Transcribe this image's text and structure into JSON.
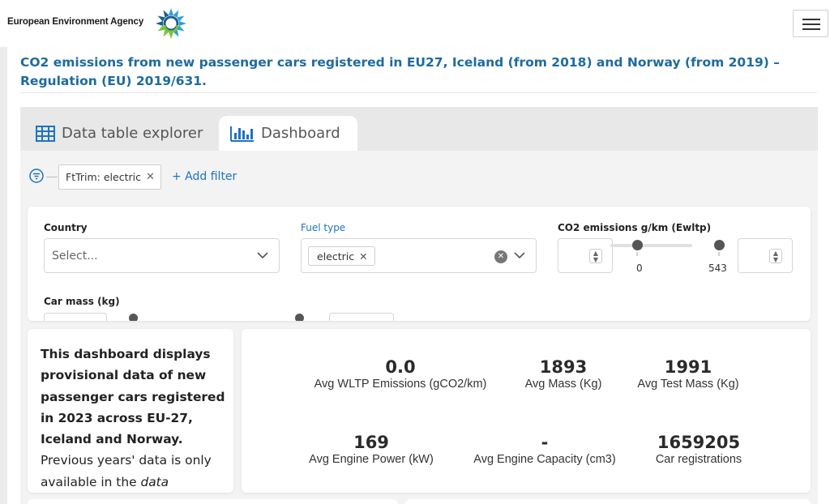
{
  "header": {
    "brand": "European Environment Agency",
    "logo_icon": "eea-logo-icon",
    "menu_icon": "hamburger-menu-icon"
  },
  "page": {
    "title": "CO2 emissions from new passenger cars registered in EU27, Iceland (from 2018) and Norway (from 2019) – Regulation (EU) 2019/631."
  },
  "tabs": [
    {
      "label": "Data table explorer",
      "icon": "table-grid-icon",
      "active": false
    },
    {
      "label": "Dashboard",
      "icon": "bar-chart-icon",
      "active": true
    }
  ],
  "filters": {
    "active_chip": "FtTrim: electric",
    "add_label": "+ Add filter"
  },
  "controls": {
    "country": {
      "label": "Country",
      "placeholder": "Select..."
    },
    "fuel_type": {
      "label": "Fuel type",
      "selected": "electric"
    },
    "co2": {
      "label": "CO2 emissions g/km (Ewltp)",
      "min": "0",
      "max": "543"
    },
    "car_mass": {
      "label": "Car mass (kg)"
    }
  },
  "info_text": {
    "bold": "This dashboard displays provisional data of new passenger cars registered in 2023 across EU-27, Iceland and Norway.",
    "normal": " Previous years' data is only available in the ",
    "italic": "data"
  },
  "stats": [
    {
      "value": "0.0",
      "label": "Avg WLTP Emissions (gCO2/km)"
    },
    {
      "value": "1893",
      "label": "Avg Mass (Kg)"
    },
    {
      "value": "1991",
      "label": "Avg Test Mass (Kg)"
    },
    {
      "value": "169",
      "label": "Avg Engine Power (kW)"
    },
    {
      "value": "-",
      "label": "Avg Engine Capacity (cm3)"
    },
    {
      "value": "1659205",
      "label": "Car registrations"
    }
  ],
  "colors": {
    "title_blue": "#1e6b9e",
    "link_blue": "#1e73be",
    "panel_grey": "#f3f3f3"
  }
}
